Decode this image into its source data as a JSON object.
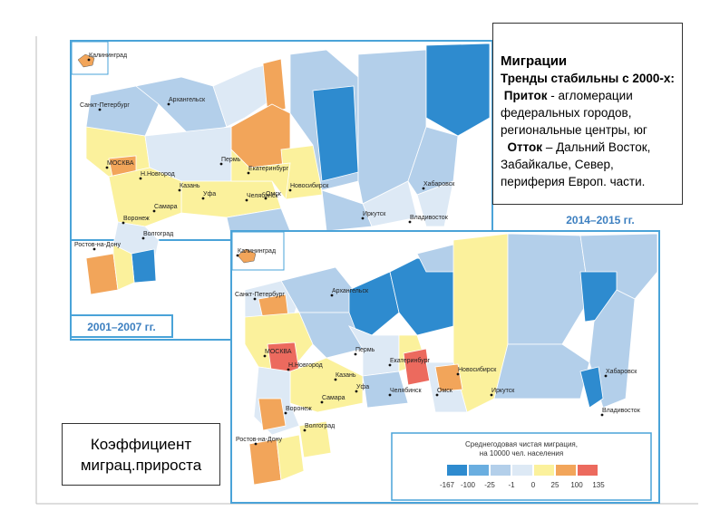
{
  "info_box": {
    "title": "Миграции",
    "subtitle": "Тренды стабильны с 2000-х:",
    "inflow_label": "Приток",
    "inflow_text": " - агломерации федеральных городов, региональные центры, юг",
    "outflow_label": "Отток",
    "outflow_text": " – Дальний Восток, Забайкалье, Север, периферия Европ. части."
  },
  "caption": "Коэффициент миграц.прироста",
  "map_2001": {
    "period": "2001–2007 гг.",
    "cities": [
      "Калининград",
      "Санкт-Петербург",
      "Архангельск",
      "МОСКВА",
      "Н.Новгород",
      "Пермь",
      "Екатеринбург",
      "Казань",
      "Уфа",
      "Челябинск",
      "Омск",
      "Новосибирск",
      "Иркутск",
      "Хабаровск",
      "Владивосток",
      "Самара",
      "Воронеж",
      "Волгоград",
      "Ростов-на-Дону"
    ]
  },
  "map_2014": {
    "period": "2014–2015 гг.",
    "cities": [
      "Калининград",
      "Санкт-Петербург",
      "Архангельск",
      "МОСКВА",
      "Н.Новгород",
      "Пермь",
      "Екатеринбург",
      "Казань",
      "Уфа",
      "Челябинск",
      "Омск",
      "Новосибирск",
      "Иркутск",
      "Хабаровск",
      "Владивосток",
      "Самара",
      "Воронеж",
      "Волгоград",
      "Ростов-на-Дону"
    ]
  },
  "legend": {
    "title_lines": [
      "Среднегодовая чистая миграция,",
      "на 10000 чел. населения"
    ],
    "ticks": [
      -167,
      -100,
      -25,
      -1,
      0,
      25,
      100,
      135
    ],
    "colors": [
      "#2e8bcf",
      "#6aaee0",
      "#b3cfea",
      "#dde9f5",
      "#fbf19c",
      "#f2a55a",
      "#ec6a5e"
    ]
  }
}
